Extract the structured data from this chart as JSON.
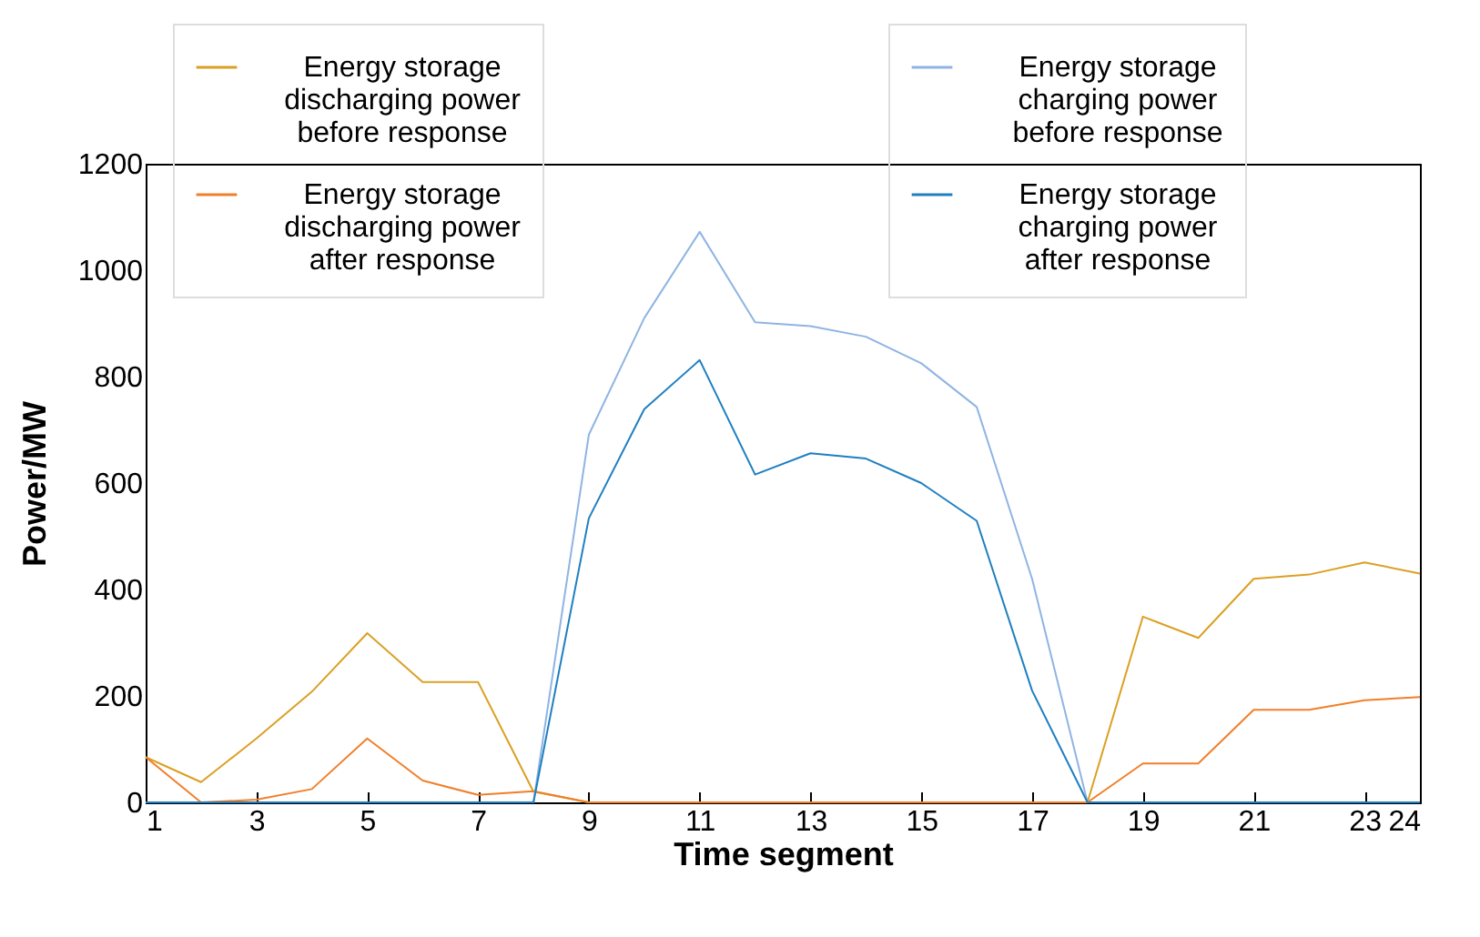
{
  "chart_data": {
    "type": "line",
    "xlabel": "Time segment",
    "ylabel": "Power/MW",
    "x": [
      1,
      2,
      3,
      4,
      5,
      6,
      7,
      8,
      9,
      10,
      11,
      12,
      13,
      14,
      15,
      16,
      17,
      18,
      19,
      20,
      21,
      22,
      23,
      24
    ],
    "xlim": [
      1,
      24
    ],
    "xticks": [
      1,
      3,
      5,
      7,
      9,
      11,
      13,
      15,
      17,
      19,
      21,
      23,
      24
    ],
    "ylim": [
      0,
      1200
    ],
    "yticks": [
      0,
      200,
      400,
      600,
      800,
      1000,
      1200
    ],
    "grid": false,
    "legend": "top",
    "series": [
      {
        "name": "Energy storage discharging power before response",
        "color": "#dba024",
        "values": [
          85,
          38,
          120,
          208,
          318,
          226,
          226,
          20,
          0,
          0,
          0,
          0,
          0,
          0,
          0,
          0,
          0,
          0,
          349,
          309,
          420,
          428,
          451,
          430
        ]
      },
      {
        "name": "Energy storage discharging power after response",
        "color": "#f07f2a",
        "values": [
          85,
          0,
          5,
          25,
          120,
          41,
          14,
          21,
          0,
          0,
          0,
          0,
          0,
          0,
          0,
          0,
          0,
          0,
          73,
          73,
          174,
          174,
          192,
          198
        ]
      },
      {
        "name": "Energy storage charging power before response",
        "color": "#8fb4e3",
        "values": [
          0,
          0,
          0,
          0,
          0,
          0,
          0,
          0,
          691,
          910,
          1072,
          902,
          895,
          875,
          825,
          743,
          420,
          0,
          0,
          0,
          0,
          0,
          0,
          0
        ]
      },
      {
        "name": "Energy storage charging power after response",
        "color": "#1f7fc0",
        "values": [
          0,
          0,
          0,
          0,
          0,
          0,
          0,
          0,
          534,
          739,
          831,
          616,
          656,
          646,
          600,
          529,
          210,
          0,
          0,
          0,
          0,
          0,
          0,
          0
        ]
      }
    ]
  }
}
